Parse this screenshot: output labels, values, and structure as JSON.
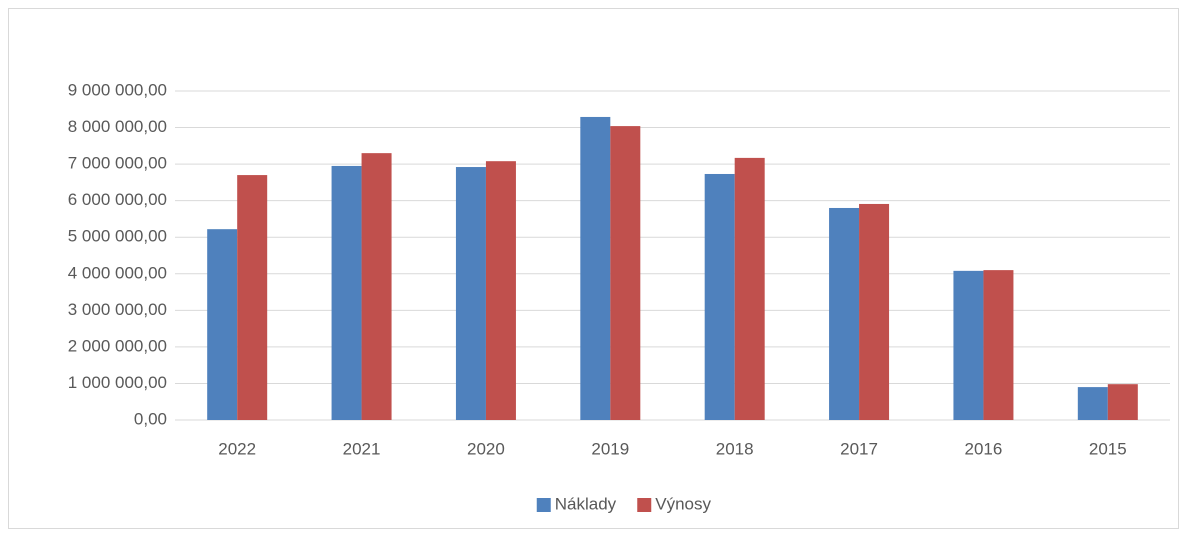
{
  "chart_data": {
    "type": "bar",
    "categories": [
      "2022",
      "2021",
      "2020",
      "2019",
      "2018",
      "2017",
      "2016",
      "2015"
    ],
    "series": [
      {
        "name": "Náklady",
        "color": "#4f81bd",
        "values": [
          5220000,
          6950000,
          6920000,
          8290000,
          6730000,
          5800000,
          4080000,
          900000
        ]
      },
      {
        "name": "Výnosy",
        "color": "#c0504d",
        "values": [
          6700000,
          7300000,
          7080000,
          8040000,
          7170000,
          5910000,
          4100000,
          980000
        ]
      }
    ],
    "ylim": [
      0,
      9000000
    ],
    "yticks": [
      {
        "value": 0,
        "label": "0,00"
      },
      {
        "value": 1000000,
        "label": "1 000 000,00"
      },
      {
        "value": 2000000,
        "label": "2 000 000,00"
      },
      {
        "value": 3000000,
        "label": "3 000 000,00"
      },
      {
        "value": 4000000,
        "label": "4 000 000,00"
      },
      {
        "value": 5000000,
        "label": "5 000 000,00"
      },
      {
        "value": 6000000,
        "label": "6 000 000,00"
      },
      {
        "value": 7000000,
        "label": "7 000 000,00"
      },
      {
        "value": 8000000,
        "label": "8 000 000,00"
      },
      {
        "value": 9000000,
        "label": "9 000 000,00"
      }
    ],
    "grid": true,
    "legend": "bottom"
  }
}
